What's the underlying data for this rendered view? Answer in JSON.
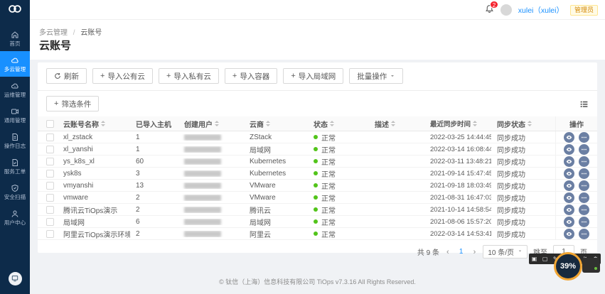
{
  "sidebar": {
    "items": [
      {
        "label": "首页",
        "icon": "home-icon",
        "active": false
      },
      {
        "label": "多云管理",
        "icon": "cloud-icon",
        "active": true
      },
      {
        "label": "运维管理",
        "icon": "ops-cloud-icon",
        "active": false
      },
      {
        "label": "通用管理",
        "icon": "general-icon",
        "active": false
      },
      {
        "label": "操作日志",
        "icon": "log-icon",
        "active": false
      },
      {
        "label": "服务工单",
        "icon": "ticket-icon",
        "active": false
      },
      {
        "label": "安全扫描",
        "icon": "shield-icon",
        "active": false
      },
      {
        "label": "用户中心",
        "icon": "user-icon",
        "active": false
      }
    ]
  },
  "header": {
    "notification_count": "2",
    "username": "xulei（xulei）",
    "role_badge": "管理员"
  },
  "breadcrumb": {
    "parent": "多云管理",
    "separator": "/",
    "current": "云账号"
  },
  "page": {
    "title": "云账号"
  },
  "toolbar": {
    "refresh_label": "刷新",
    "plus_symbol": "+",
    "import_buttons": [
      {
        "label": "导入公有云"
      },
      {
        "label": "导入私有云"
      },
      {
        "label": "导入容器"
      },
      {
        "label": "导入局域网"
      }
    ],
    "batch_label": "批量操作",
    "filter_label": "筛选条件"
  },
  "table": {
    "columns": [
      {
        "label": "云账号名称",
        "sortable": true
      },
      {
        "label": "已导入主机",
        "sortable": false
      },
      {
        "label": "创建用户",
        "sortable": true
      },
      {
        "label": "云商",
        "sortable": true
      },
      {
        "label": "状态",
        "sortable": true
      },
      {
        "label": "描述",
        "sortable": true
      },
      {
        "label": "最近同步时间",
        "sortable": true
      },
      {
        "label": "同步状态",
        "sortable": true
      },
      {
        "label": "操作",
        "sortable": false
      }
    ],
    "rows": [
      {
        "name": "xl_zstack",
        "hosts": "1",
        "creator_redacted": true,
        "cloud": "ZStack",
        "status": "正常",
        "description": "",
        "sync_time": "2022-03-25 14:44:45",
        "sync_status": "同步成功"
      },
      {
        "name": "xl_yanshi",
        "hosts": "1",
        "creator_redacted": true,
        "cloud": "局域网",
        "status": "正常",
        "description": "",
        "sync_time": "2022-03-14 16:08:44",
        "sync_status": "同步成功"
      },
      {
        "name": "ys_k8s_xl",
        "hosts": "60",
        "creator_redacted": true,
        "cloud": "Kubernetes",
        "status": "正常",
        "description": "",
        "sync_time": "2022-03-11 13:48:21",
        "sync_status": "同步成功"
      },
      {
        "name": "ysk8s",
        "hosts": "3",
        "creator_redacted": true,
        "cloud": "Kubernetes",
        "status": "正常",
        "description": "",
        "sync_time": "2021-09-14 15:47:45",
        "sync_status": "同步成功"
      },
      {
        "name": "vmyanshi",
        "hosts": "13",
        "creator_redacted": true,
        "cloud": "VMware",
        "status": "正常",
        "description": "",
        "sync_time": "2021-09-18 18:03:49",
        "sync_status": "同步成功"
      },
      {
        "name": "vmware",
        "hosts": "2",
        "creator_redacted": true,
        "cloud": "VMware",
        "status": "正常",
        "description": "",
        "sync_time": "2021-08-31 16:47:03",
        "sync_status": "同步成功"
      },
      {
        "name": "腾讯云TiOps演示",
        "hosts": "2",
        "creator_redacted": true,
        "cloud": "腾讯云",
        "status": "正常",
        "description": "",
        "sync_time": "2021-10-14 14:58:54",
        "sync_status": "同步成功"
      },
      {
        "name": "局域网",
        "hosts": "6",
        "creator_redacted": true,
        "cloud": "局域网",
        "status": "正常",
        "description": "",
        "sync_time": "2021-08-06 15:57:20",
        "sync_status": "同步成功"
      },
      {
        "name": "阿里云TiOps演示环境",
        "hosts": "2",
        "creator_redacted": true,
        "cloud": "阿里云",
        "status": "正常",
        "description": "",
        "sync_time": "2022-03-14 14:53:41",
        "sync_status": "同步成功"
      }
    ]
  },
  "pagination": {
    "total": "共 9 条",
    "prev": "‹",
    "current_page": "1",
    "next": "›",
    "page_size": "10 条/页",
    "jump_label": "跳至",
    "jump_value": "1",
    "page_unit": "页"
  },
  "footer": {
    "copyright": "© 钛信（上海）信息科技有限公司 TiOps v7.3.16 All Rights Reserved."
  },
  "overlay": {
    "percent": "39%",
    "toolbar_icons": [
      {
        "name": "window-icon",
        "glyph": "▣"
      },
      {
        "name": "frame-icon",
        "glyph": "▢"
      },
      {
        "name": "pen-icon",
        "glyph": "✎"
      },
      {
        "name": "more-icon",
        "glyph": "⋯"
      },
      {
        "name": "menu-icon",
        "glyph": "≡"
      },
      {
        "name": "flash-icon",
        "glyph": "↯"
      },
      {
        "name": "settings-icon",
        "glyph": "⚙"
      }
    ]
  },
  "colors": {
    "accent": "#1890ff",
    "sidebar_bg": "#0d2b4a",
    "status_ok": "#52c41a",
    "action_button": "#6b7fa3",
    "notification_badge": "#f5222d",
    "role_badge_text": "#d48806",
    "gauge_ring": "#f0a432"
  }
}
